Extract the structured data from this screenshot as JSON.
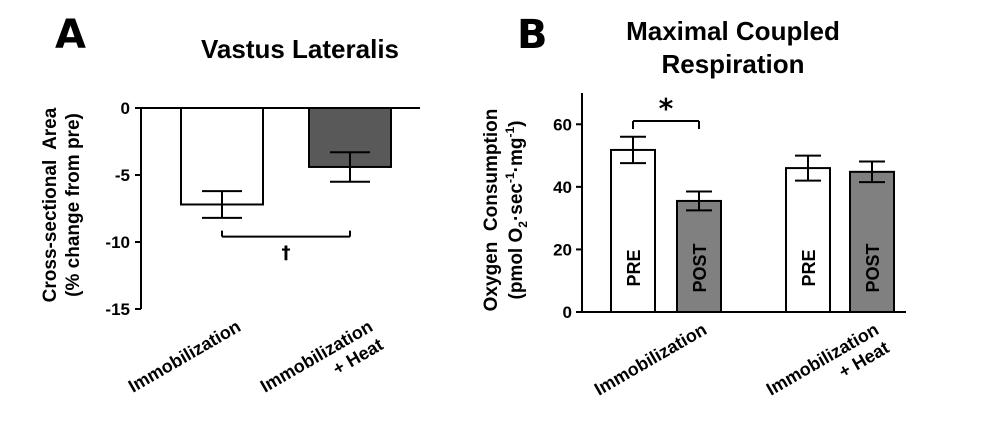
{
  "chart_data": [
    {
      "type": "bar",
      "panel": "A",
      "title": "Vastus Lateralis",
      "ylabel_lines": [
        "Cross-sectional  Area",
        "(% change from pre)"
      ],
      "categories": [
        [
          "Immobilization"
        ],
        [
          "Immobilization",
          "+ Heat"
        ]
      ],
      "values": [
        -7.2,
        -4.4
      ],
      "errors": [
        1.0,
        1.1
      ],
      "colors": [
        "#ffffff",
        "#595959"
      ],
      "ylim": [
        -15,
        0
      ],
      "yticks": [
        0,
        -5,
        -10,
        -15
      ],
      "annotation": {
        "symbol": "†",
        "between": [
          0,
          1
        ]
      }
    },
    {
      "type": "bar",
      "panel": "B",
      "title_lines": [
        "Maximal Coupled",
        "Respiration"
      ],
      "ylabel_line1": "Oxygen  Consumption",
      "ylabel_line2": {
        "pre": "(pmol O",
        "sub": "2",
        "mid1": "·sec",
        "sup1": "-1",
        "mid2": "·mg",
        "sup2": "-1",
        "post": ")"
      },
      "groups": [
        [
          "Immobilization"
        ],
        [
          "Immobilization",
          "+ Heat"
        ]
      ],
      "series": [
        {
          "name": "PRE",
          "values": [
            51.8,
            46.0
          ],
          "errors": [
            4.2,
            4.0
          ],
          "color": "#ffffff"
        },
        {
          "name": "POST",
          "values": [
            35.5,
            44.8
          ],
          "errors": [
            3.0,
            3.3
          ],
          "color": "#808080"
        }
      ],
      "ylim": [
        0,
        70
      ],
      "yticks": [
        0,
        20,
        40,
        60
      ],
      "annotation": {
        "symbol": "*",
        "group": 0
      }
    }
  ]
}
